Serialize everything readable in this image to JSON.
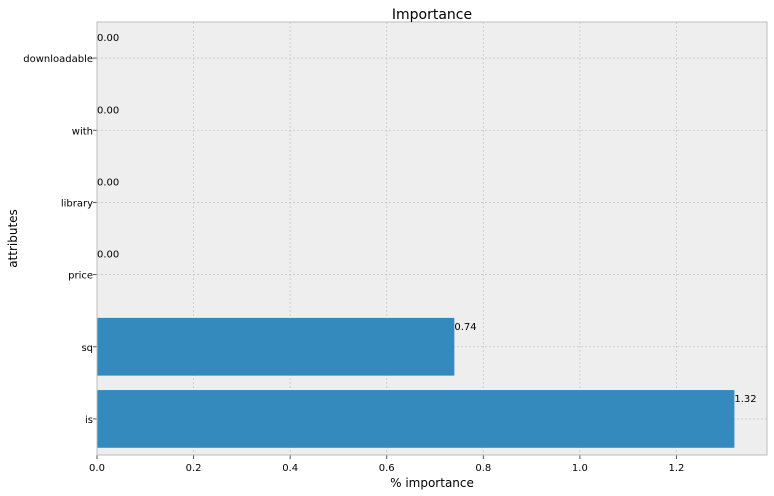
{
  "chart_data": {
    "type": "bar",
    "orientation": "horizontal",
    "title": "Importance",
    "xlabel": "% importance",
    "ylabel": "attributes",
    "categories": [
      "is",
      "sq",
      "price",
      "library",
      "with",
      "downloadable"
    ],
    "values": [
      1.32,
      0.74,
      0.0,
      0.0,
      0.0,
      0.0
    ],
    "data_labels": [
      "1.32",
      "0.74",
      "0.00",
      "0.00",
      "0.00",
      "0.00"
    ],
    "xlim": [
      0,
      1.3875
    ],
    "xticks": [
      0.0,
      0.2,
      0.4,
      0.6,
      0.8,
      1.0,
      1.2
    ],
    "xtick_labels": [
      "0.0",
      "0.2",
      "0.4",
      "0.6",
      "0.8",
      "1.0",
      "1.2"
    ],
    "grid": true,
    "colors": {
      "bar": "#348abd",
      "plot_background": "#eeeeee",
      "grid": "#c8c8c8",
      "axis_edge": "#bcbcbc"
    }
  }
}
